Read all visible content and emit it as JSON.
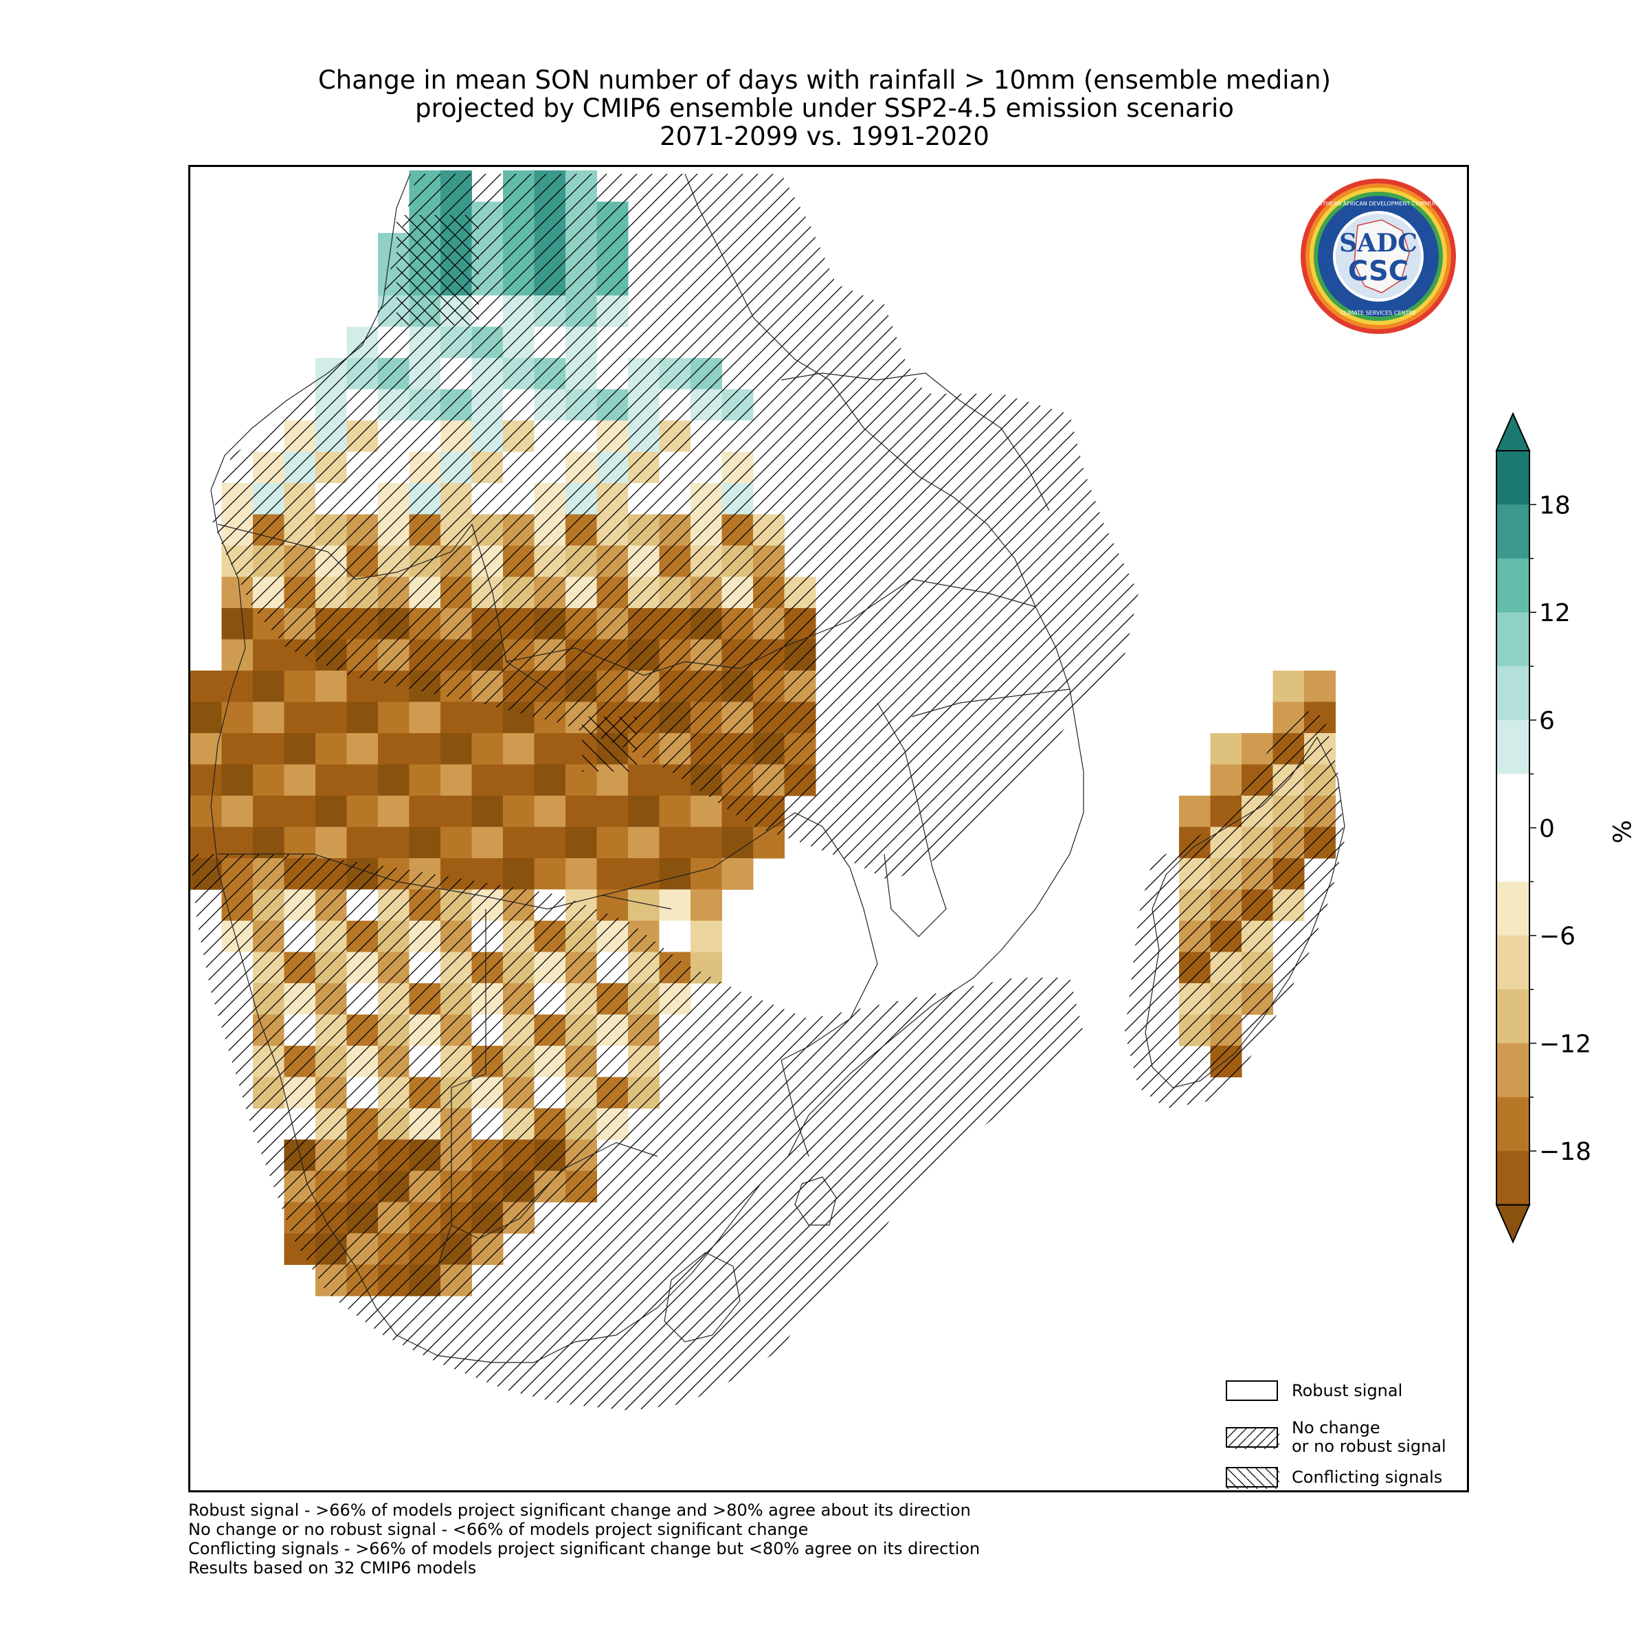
{
  "title": {
    "line1": "Change in mean SON number of days with rainfall > 10mm (ensemble median)",
    "line2": "projected by CMIP6 ensemble under SSP2-4.5 emission scenario",
    "line3": "2071-2099 vs. 1991-2020"
  },
  "logo": {
    "text_top": "SOUTHERN AFRICAN DEVELOPMENT COMMUNITY",
    "text_bottom": "CLIMATE SERVICES CENTRE",
    "monogram1": "SADC",
    "monogram2": "CSC"
  },
  "legend": {
    "items": [
      {
        "label_line1": "Robust signal",
        "label_line2": "",
        "pattern": "none"
      },
      {
        "label_line1": "No change",
        "label_line2": "or no robust signal",
        "pattern": "forward-hatch"
      },
      {
        "label_line1": "Conflicting signals",
        "label_line2": "",
        "pattern": "back-hatch"
      }
    ]
  },
  "colorbar": {
    "unit": "%",
    "ticks": [
      "18",
      "12",
      "6",
      "0",
      "−6",
      "−12",
      "−18"
    ],
    "tick_values": [
      18,
      12,
      6,
      0,
      -6,
      -12,
      -18
    ],
    "range": [
      -21,
      21
    ],
    "step": 3,
    "extend": "both",
    "colors": {
      "teal": [
        "#d2ede9",
        "#b3e1da",
        "#8fd1c5",
        "#63bbaa",
        "#3b998b",
        "#1b7a6f"
      ],
      "white": "#ffffff",
      "brown": [
        "#f6e8c3",
        "#ecd59f",
        "#dfc17e",
        "#cf9b50",
        "#b87727",
        "#a05e14",
        "#8a520f"
      ]
    }
  },
  "footnotes": [
    "Robust signal - >66% of models project significant change and >80% agree about its direction",
    "No change or no robust signal - <66% of models project significant change",
    "Conflicting signals - >66% of models project significant change but <80% agree on its direction",
    "Results based on 32 CMIP6 models"
  ]
}
